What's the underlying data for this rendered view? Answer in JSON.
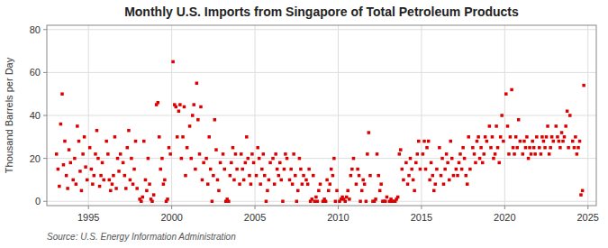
{
  "chart_data": {
    "type": "scatter",
    "title": "Monthly U.S. Imports from Singapore of Total Petroleum Products",
    "y_label": "Thousand Barrels per Day",
    "source": "Source: U.S. Energy Information Administration",
    "color": "#dd0000",
    "marker": "square",
    "grid": true,
    "xlim": [
      1992.5,
      2025.5
    ],
    "ylim": [
      -2,
      82
    ],
    "xticks": [
      1995,
      2000,
      2005,
      2010,
      2015,
      2020,
      2025
    ],
    "yticks": [
      0,
      20,
      40,
      60,
      80
    ],
    "x": [
      1993.08,
      1993.17,
      1993.25,
      1993.33,
      1993.42,
      1993.5,
      1993.58,
      1993.67,
      1993.75,
      1993.83,
      1993.92,
      1994.08,
      1994.17,
      1994.25,
      1994.33,
      1994.42,
      1994.5,
      1994.58,
      1994.67,
      1994.75,
      1994.83,
      1994.92,
      1995.08,
      1995.17,
      1995.25,
      1995.33,
      1995.42,
      1995.5,
      1995.58,
      1995.67,
      1995.75,
      1995.83,
      1995.92,
      1996.08,
      1996.17,
      1996.25,
      1996.33,
      1996.42,
      1996.5,
      1996.58,
      1996.67,
      1996.75,
      1996.83,
      1996.92,
      1997.08,
      1997.17,
      1997.25,
      1997.33,
      1997.42,
      1997.5,
      1997.58,
      1997.67,
      1997.75,
      1997.83,
      1997.92,
      1998.08,
      1998.17,
      1998.25,
      1998.33,
      1998.42,
      1998.5,
      1998.58,
      1998.67,
      1998.75,
      1998.83,
      1998.92,
      1999.08,
      1999.17,
      1999.25,
      1999.33,
      1999.42,
      1999.5,
      1999.58,
      1999.67,
      1999.75,
      1999.83,
      1999.92,
      2000.08,
      2000.17,
      2000.25,
      2000.33,
      2000.42,
      2000.5,
      2000.58,
      2000.67,
      2000.75,
      2000.83,
      2000.92,
      2001.08,
      2001.17,
      2001.25,
      2001.33,
      2001.42,
      2001.5,
      2001.58,
      2001.67,
      2001.75,
      2001.83,
      2001.92,
      2002.08,
      2002.17,
      2002.25,
      2002.33,
      2002.42,
      2002.5,
      2002.58,
      2002.67,
      2002.75,
      2002.83,
      2002.92,
      2003.08,
      2003.17,
      2003.25,
      2003.33,
      2003.42,
      2003.5,
      2003.58,
      2003.67,
      2003.75,
      2003.83,
      2003.92,
      2004.08,
      2004.17,
      2004.25,
      2004.33,
      2004.42,
      2004.5,
      2004.58,
      2004.67,
      2004.75,
      2004.83,
      2004.92,
      2005.08,
      2005.17,
      2005.25,
      2005.33,
      2005.42,
      2005.5,
      2005.58,
      2005.67,
      2005.75,
      2005.83,
      2005.92,
      2006.08,
      2006.17,
      2006.25,
      2006.33,
      2006.42,
      2006.5,
      2006.58,
      2006.67,
      2006.75,
      2006.83,
      2006.92,
      2007.08,
      2007.17,
      2007.25,
      2007.33,
      2007.42,
      2007.5,
      2007.58,
      2007.67,
      2007.75,
      2007.83,
      2007.92,
      2008.08,
      2008.17,
      2008.25,
      2008.33,
      2008.42,
      2008.5,
      2008.58,
      2008.67,
      2008.75,
      2008.83,
      2008.92,
      2009.08,
      2009.17,
      2009.25,
      2009.33,
      2009.42,
      2009.5,
      2009.58,
      2009.67,
      2009.75,
      2009.83,
      2009.92,
      2010.08,
      2010.17,
      2010.25,
      2010.33,
      2010.42,
      2010.5,
      2010.58,
      2010.67,
      2010.75,
      2010.83,
      2010.92,
      2011.08,
      2011.17,
      2011.25,
      2011.33,
      2011.42,
      2011.5,
      2011.58,
      2011.67,
      2011.75,
      2011.83,
      2011.92,
      2012.08,
      2012.17,
      2012.25,
      2012.33,
      2012.42,
      2012.5,
      2012.58,
      2012.67,
      2012.75,
      2012.83,
      2012.92,
      2013.08,
      2013.17,
      2013.25,
      2013.33,
      2013.42,
      2013.5,
      2013.58,
      2013.67,
      2013.75,
      2013.83,
      2013.92,
      2014.08,
      2014.17,
      2014.25,
      2014.33,
      2014.42,
      2014.5,
      2014.58,
      2014.67,
      2014.75,
      2014.83,
      2014.92,
      2015.08,
      2015.17,
      2015.25,
      2015.33,
      2015.42,
      2015.5,
      2015.58,
      2015.67,
      2015.75,
      2015.83,
      2015.92,
      2016.08,
      2016.17,
      2016.25,
      2016.33,
      2016.42,
      2016.5,
      2016.58,
      2016.67,
      2016.75,
      2016.83,
      2016.92,
      2017.08,
      2017.17,
      2017.25,
      2017.33,
      2017.42,
      2017.5,
      2017.58,
      2017.67,
      2017.75,
      2017.83,
      2017.92,
      2018.08,
      2018.17,
      2018.25,
      2018.33,
      2018.42,
      2018.5,
      2018.58,
      2018.67,
      2018.75,
      2018.83,
      2018.92,
      2019.08,
      2019.17,
      2019.25,
      2019.33,
      2019.42,
      2019.5,
      2019.58,
      2019.67,
      2019.75,
      2019.83,
      2019.92,
      2020.08,
      2020.17,
      2020.25,
      2020.33,
      2020.42,
      2020.5,
      2020.58,
      2020.67,
      2020.75,
      2020.83,
      2020.92,
      2021.08,
      2021.17,
      2021.25,
      2021.33,
      2021.42,
      2021.5,
      2021.58,
      2021.67,
      2021.75,
      2021.83,
      2021.92,
      2022.08,
      2022.17,
      2022.25,
      2022.33,
      2022.42,
      2022.5,
      2022.58,
      2022.67,
      2022.75,
      2022.83,
      2022.92,
      2023.08,
      2023.17,
      2023.25,
      2023.33,
      2023.42,
      2023.5,
      2023.58,
      2023.67,
      2023.75,
      2023.83,
      2023.92,
      2024.08,
      2024.17,
      2024.25,
      2024.33,
      2024.42,
      2024.5,
      2024.58,
      2024.67,
      2024.75
    ],
    "values": [
      22,
      15,
      7,
      36,
      50,
      17,
      28,
      12,
      6,
      24,
      18,
      10,
      20,
      8,
      35,
      28,
      14,
      5,
      22,
      30,
      16,
      10,
      25,
      15,
      8,
      12,
      22,
      33,
      20,
      7,
      12,
      18,
      10,
      28,
      22,
      10,
      5,
      8,
      12,
      30,
      6,
      20,
      14,
      22,
      18,
      12,
      6,
      25,
      33,
      10,
      20,
      8,
      15,
      28,
      6,
      1,
      0,
      2,
      28,
      10,
      5,
      20,
      8,
      1,
      0,
      3,
      45,
      46,
      30,
      15,
      20,
      8,
      10,
      0,
      1,
      25,
      22,
      65,
      45,
      44,
      30,
      42,
      45,
      20,
      30,
      44,
      12,
      25,
      35,
      20,
      40,
      45,
      15,
      55,
      38,
      22,
      44,
      10,
      18,
      20,
      8,
      30,
      15,
      0,
      12,
      38,
      24,
      10,
      5,
      18,
      22,
      15,
      0,
      1,
      0,
      12,
      18,
      25,
      10,
      22,
      15,
      8,
      22,
      15,
      10,
      18,
      30,
      20,
      12,
      8,
      22,
      18,
      12,
      25,
      20,
      8,
      15,
      22,
      12,
      0,
      5,
      10,
      18,
      20,
      8,
      22,
      15,
      12,
      18,
      10,
      0,
      15,
      22,
      20,
      10,
      15,
      8,
      22,
      12,
      0,
      5,
      20,
      15,
      8,
      12,
      10,
      8,
      15,
      0,
      1,
      12,
      0,
      2,
      0,
      5,
      8,
      0,
      1,
      0,
      10,
      5,
      8,
      15,
      12,
      20,
      0,
      5,
      0,
      1,
      2,
      1,
      0,
      2,
      5,
      1,
      12,
      15,
      20,
      8,
      15,
      12,
      0,
      5,
      10,
      8,
      0,
      22,
      32,
      12,
      0,
      0,
      1,
      22,
      12,
      5,
      8,
      0,
      0,
      0,
      2,
      0,
      1,
      0,
      0,
      0,
      1,
      2,
      22,
      24,
      15,
      10,
      18,
      8,
      12,
      20,
      15,
      10,
      5,
      18,
      22,
      28,
      15,
      22,
      28,
      15,
      25,
      28,
      10,
      18,
      12,
      5,
      8,
      15,
      25,
      12,
      20,
      8,
      15,
      22,
      18,
      10,
      28,
      20,
      12,
      15,
      12,
      18,
      22,
      15,
      25,
      20,
      12,
      8,
      30,
      15,
      25,
      22,
      18,
      28,
      30,
      20,
      25,
      18,
      22,
      30,
      28,
      35,
      25,
      30,
      20,
      22,
      35,
      25,
      18,
      30,
      40,
      28,
      50,
      35,
      22,
      30,
      52,
      25,
      22,
      30,
      25,
      38,
      28,
      22,
      28,
      25,
      30,
      20,
      25,
      22,
      28,
      25,
      22,
      30,
      25,
      22,
      30,
      28,
      25,
      30,
      35,
      22,
      25,
      30,
      28,
      35,
      30,
      28,
      25,
      32,
      28,
      30,
      35,
      42,
      25,
      40,
      28,
      25,
      30,
      22,
      25,
      28,
      3,
      5,
      54
    ]
  }
}
